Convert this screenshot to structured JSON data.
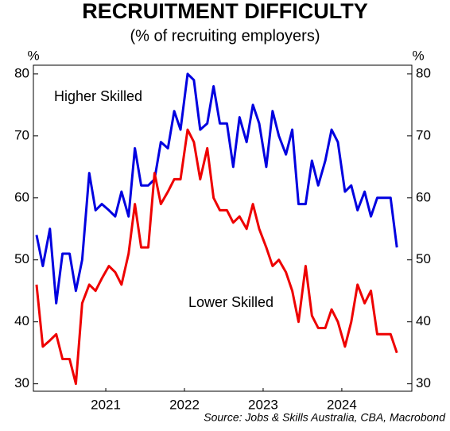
{
  "chart_data": {
    "type": "line",
    "title": "RECRUITMENT DIFFICULTY",
    "subtitle": "(% of recruiting employers)",
    "y_unit": "%",
    "source": "Source: Jobs & Skills Australia, CBA, Macrobond",
    "x": [
      2020.62,
      2020.7,
      2020.79,
      2020.87,
      2020.95,
      2021.04,
      2021.12,
      2021.2,
      2021.29,
      2021.37,
      2021.45,
      2021.54,
      2021.62,
      2021.7,
      2021.79,
      2021.87,
      2021.95,
      2022.04,
      2022.12,
      2022.2,
      2022.29,
      2022.37,
      2022.45,
      2022.54,
      2022.62,
      2022.7,
      2022.79,
      2022.87,
      2022.95,
      2023.04,
      2023.12,
      2023.2,
      2023.29,
      2023.37,
      2023.45,
      2023.54,
      2023.62,
      2023.7,
      2023.79,
      2023.87,
      2023.95,
      2024.04,
      2024.12,
      2024.2,
      2024.29,
      2024.37,
      2024.45,
      2024.54,
      2024.62,
      2024.7,
      2024.79,
      2024.87,
      2024.95,
      2025.04,
      2025.12,
      2025.2
    ],
    "series": [
      {
        "name": "Higher Skilled",
        "color": "#0000e0",
        "values": [
          54,
          49,
          55,
          43,
          51,
          51,
          45,
          50,
          64,
          58,
          59,
          58,
          57,
          61,
          57,
          68,
          62,
          62,
          63,
          69,
          68,
          74,
          71,
          80,
          79,
          71,
          72,
          78,
          72,
          72,
          65,
          73,
          69,
          75,
          72,
          65,
          74,
          70,
          67,
          71,
          59,
          59,
          66,
          62,
          66,
          71,
          69,
          61,
          62,
          58,
          61,
          57,
          60,
          60,
          60,
          52
        ]
      },
      {
        "name": "Lower Skilled",
        "color": "#ee0000",
        "values": [
          46,
          36,
          37,
          38,
          34,
          34,
          30,
          43,
          46,
          45,
          47,
          49,
          48,
          46,
          51,
          59,
          52,
          52,
          64,
          59,
          61,
          63,
          63,
          71,
          69,
          63,
          68,
          60,
          58,
          58,
          56,
          57,
          55,
          59,
          55,
          52,
          49,
          50,
          48,
          45,
          40,
          49,
          41,
          39,
          39,
          42,
          40,
          36,
          40,
          46,
          43,
          45,
          38,
          38,
          38,
          35
        ]
      }
    ],
    "xlim": [
      2020.58,
      2025.39
    ],
    "xticks": [
      {
        "value": 2021.5,
        "label": "2021"
      },
      {
        "value": 2022.5,
        "label": "2022"
      },
      {
        "value": 2023.5,
        "label": "2023"
      },
      {
        "value": 2024.5,
        "label": "2024"
      }
    ],
    "ylim": [
      28.8,
      81.4
    ],
    "yticks": [
      30,
      40,
      50,
      60,
      70,
      80
    ]
  }
}
